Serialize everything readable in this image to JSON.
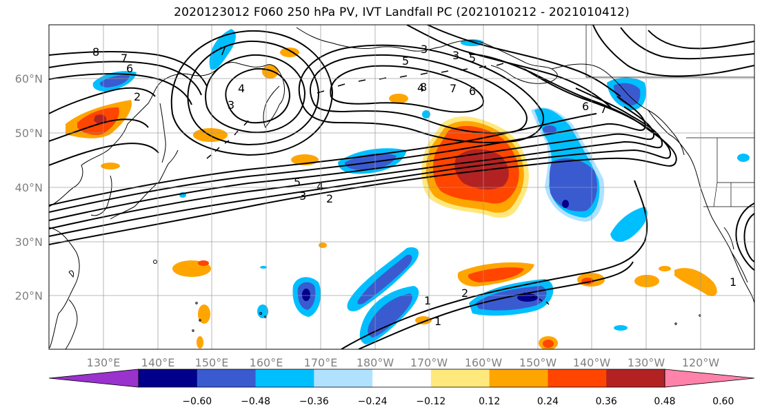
{
  "title": "2020123012 F060 250 hPa PV, IVT Landfall PC (2021010212 - 2021010412)",
  "map": {
    "lon_range": [
      120,
      250
    ],
    "lat_range": [
      10,
      70
    ],
    "lat_labels": [
      "20°N",
      "30°N",
      "40°N",
      "50°N",
      "60°N"
    ],
    "lon_labels": [
      "130°E",
      "140°E",
      "150°E",
      "160°E",
      "170°E",
      "180°W",
      "170°W",
      "160°W",
      "150°W",
      "140°W",
      "130°W",
      "120°W"
    ],
    "grid": true,
    "coastlines": true
  },
  "colorbar": {
    "labels": [
      "−0.60",
      "−0.48",
      "−0.36",
      "−0.24",
      "−0.12",
      "0.12",
      "0.24",
      "0.36",
      "0.48",
      "0.60"
    ],
    "colors": [
      "#9a32cd",
      "#00008b",
      "#3a5bd0",
      "#00bfff",
      "#b0e2ff",
      "#ffffff",
      "#ffe87c",
      "#ffa500",
      "#ff4500",
      "#b22222",
      "#ff82ab"
    ],
    "extend": "both"
  },
  "contours": {
    "color": "#000000",
    "labels": [
      "8",
      "7",
      "6",
      "5",
      "4",
      "3",
      "2",
      "1",
      "3",
      "4",
      "5",
      "4",
      "3",
      "2",
      "8",
      "7",
      "6",
      "3",
      "5",
      "6",
      "7",
      "1",
      "2",
      "1",
      "7"
    ]
  }
}
